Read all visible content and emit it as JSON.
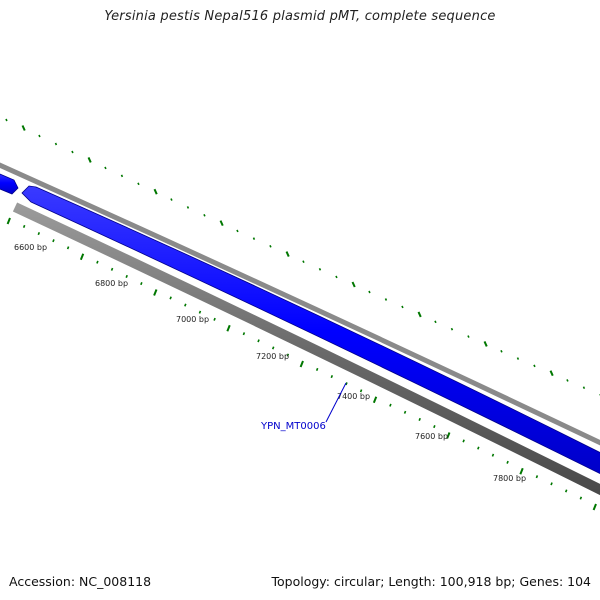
{
  "header": {
    "title": "Yersinia pestis Nepal516 plasmid pMT, complete sequence"
  },
  "map": {
    "tick_labels": [
      "6600 bp",
      "6800 bp",
      "7000 bp",
      "7200 bp",
      "7400 bp",
      "7600 bp",
      "7800 bp"
    ],
    "gene_label": "YPN_MT0006",
    "colors": {
      "gene_fill": "#0000ff",
      "backbone_gray": "#808080",
      "tick_green": "#007700",
      "label_blue": "#0000cc"
    }
  },
  "footer": {
    "accession": "Accession: NC_008118",
    "summary": "Topology: circular; Length: 100,918 bp; Genes: 104"
  }
}
